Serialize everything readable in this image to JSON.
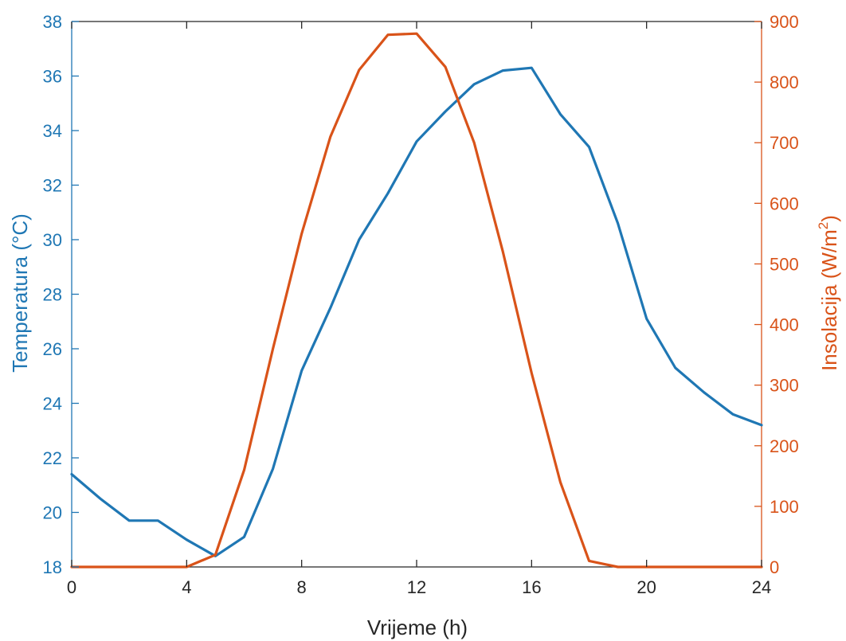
{
  "chart_data": {
    "type": "line",
    "xlabel": "Vrijeme (h)",
    "ylabel_left": "Temperatura (°C)",
    "ylabel_right_prefix": "Insolacija (W/m",
    "ylabel_right_sup": "2",
    "ylabel_right_suffix": ")",
    "xlim": [
      0,
      24
    ],
    "ylim_left": [
      18,
      38
    ],
    "ylim_right": [
      0,
      900
    ],
    "xticks": [
      0,
      4,
      8,
      12,
      16,
      20,
      24
    ],
    "yticks_left": [
      18,
      20,
      22,
      24,
      26,
      28,
      30,
      32,
      34,
      36,
      38
    ],
    "yticks_right": [
      0,
      100,
      200,
      300,
      400,
      500,
      600,
      700,
      800,
      900
    ],
    "grid": false,
    "colors": {
      "left_axis": "#1f77b4",
      "right_axis": "#d95319",
      "axis": "#262626"
    },
    "series": [
      {
        "axis": "left",
        "color": "#1f77b4",
        "x": [
          0,
          1,
          2,
          3,
          4,
          5,
          6,
          7,
          8,
          9,
          10,
          11,
          12,
          13,
          14,
          15,
          16,
          17,
          18,
          19,
          20,
          21,
          22,
          23,
          24
        ],
        "values": [
          21.4,
          20.5,
          19.7,
          19.7,
          19.0,
          18.4,
          19.1,
          21.6,
          25.2,
          27.5,
          30.0,
          31.7,
          33.6,
          34.7,
          35.7,
          36.2,
          36.3,
          34.6,
          33.4,
          30.6,
          27.1,
          25.3,
          24.4,
          23.6,
          23.2
        ]
      },
      {
        "axis": "right",
        "color": "#d95319",
        "x": [
          0,
          1,
          2,
          3,
          4,
          5,
          6,
          7,
          8,
          9,
          10,
          11,
          12,
          13,
          14,
          15,
          16,
          17,
          18,
          19,
          20,
          21,
          22,
          23,
          24
        ],
        "values": [
          0,
          0,
          0,
          0,
          0,
          20,
          160,
          360,
          550,
          710,
          820,
          878,
          880,
          825,
          700,
          520,
          320,
          140,
          10,
          0,
          0,
          0,
          0,
          0,
          0
        ]
      }
    ]
  }
}
